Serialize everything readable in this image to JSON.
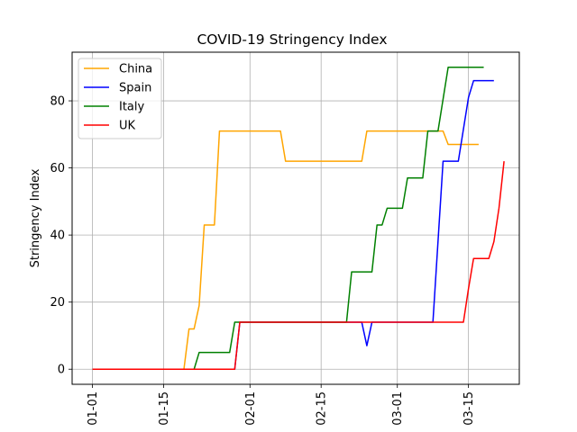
{
  "chart_data": {
    "type": "line",
    "title": "COVID-19 Stringency Index",
    "xlabel": "",
    "ylabel": "Stringency Index",
    "x_tick_labels": [
      "01-01",
      "01-15",
      "02-01",
      "02-15",
      "03-01",
      "03-15"
    ],
    "x_ticks_date": [
      "2020-01-01",
      "2020-01-15",
      "2020-02-01",
      "2020-02-15",
      "2020-03-01",
      "2020-03-15"
    ],
    "y_ticks": [
      0,
      20,
      40,
      60,
      80
    ],
    "xlim": [
      "2019-12-28",
      "2020-03-25"
    ],
    "ylim": [
      -4.5,
      94.5
    ],
    "grid": true,
    "legend_position": "top-left",
    "series": [
      {
        "name": "China",
        "color": "#ffa500",
        "points": [
          [
            "2020-01-01",
            0
          ],
          [
            "2020-01-19",
            0
          ],
          [
            "2020-01-20",
            12
          ],
          [
            "2020-01-21",
            12
          ],
          [
            "2020-01-22",
            19
          ],
          [
            "2020-01-23",
            43
          ],
          [
            "2020-01-25",
            43
          ],
          [
            "2020-01-26",
            71
          ],
          [
            "2020-02-07",
            71
          ],
          [
            "2020-02-08",
            62
          ],
          [
            "2020-02-23",
            62
          ],
          [
            "2020-02-24",
            71
          ],
          [
            "2020-03-10",
            71
          ],
          [
            "2020-03-11",
            67
          ],
          [
            "2020-03-17",
            67
          ]
        ]
      },
      {
        "name": "Spain",
        "color": "#0000ff",
        "points": [
          [
            "2020-01-01",
            0
          ],
          [
            "2020-01-29",
            0
          ],
          [
            "2020-01-30",
            14
          ],
          [
            "2020-02-23",
            14
          ],
          [
            "2020-02-24",
            7
          ],
          [
            "2020-02-25",
            14
          ],
          [
            "2020-03-08",
            14
          ],
          [
            "2020-03-10",
            62
          ],
          [
            "2020-03-13",
            62
          ],
          [
            "2020-03-15",
            81
          ],
          [
            "2020-03-16",
            86
          ],
          [
            "2020-03-20",
            86
          ]
        ]
      },
      {
        "name": "Italy",
        "color": "#008000",
        "points": [
          [
            "2020-01-01",
            0
          ],
          [
            "2020-01-21",
            0
          ],
          [
            "2020-01-22",
            5
          ],
          [
            "2020-01-28",
            5
          ],
          [
            "2020-01-29",
            14
          ],
          [
            "2020-02-20",
            14
          ],
          [
            "2020-02-21",
            29
          ],
          [
            "2020-02-25",
            29
          ],
          [
            "2020-02-26",
            43
          ],
          [
            "2020-02-27",
            43
          ],
          [
            "2020-02-28",
            48
          ],
          [
            "2020-03-02",
            48
          ],
          [
            "2020-03-03",
            57
          ],
          [
            "2020-03-06",
            57
          ],
          [
            "2020-03-07",
            71
          ],
          [
            "2020-03-09",
            71
          ],
          [
            "2020-03-11",
            90
          ],
          [
            "2020-03-18",
            90
          ]
        ]
      },
      {
        "name": "UK",
        "color": "#ff0000",
        "points": [
          [
            "2020-01-01",
            0
          ],
          [
            "2020-01-29",
            0
          ],
          [
            "2020-01-30",
            14
          ],
          [
            "2020-03-14",
            14
          ],
          [
            "2020-03-15",
            24
          ],
          [
            "2020-03-16",
            33
          ],
          [
            "2020-03-19",
            33
          ],
          [
            "2020-03-20",
            38
          ],
          [
            "2020-03-21",
            48
          ],
          [
            "2020-03-22",
            62
          ]
        ]
      }
    ]
  }
}
